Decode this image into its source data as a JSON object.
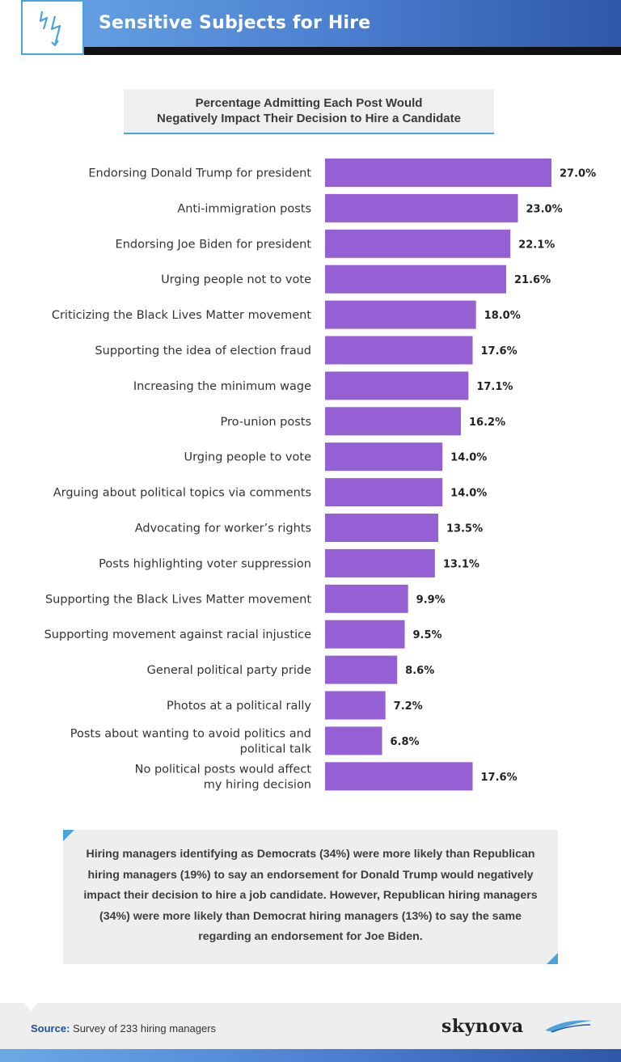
{
  "header": {
    "title": "Sensitive Subjects for Hire",
    "icon": "lightning-icon",
    "accent": "#4ba3dc"
  },
  "chart_data": {
    "type": "bar",
    "orientation": "horizontal",
    "title": "Percentage Admitting Each Post Would Negatively Impact Their Decision to Hire a Candidate",
    "title_lines": [
      "Percentage Admitting Each Post Would",
      "Negatively Impact Their Decision to Hire a Candidate"
    ],
    "bar_color": "#9560d4",
    "categories": [
      [
        "Endorsing Donald Trump for president"
      ],
      [
        "Anti-immigration posts"
      ],
      [
        "Endorsing Joe Biden for president"
      ],
      [
        "Urging people not to vote"
      ],
      [
        "Criticizing the Black Lives Matter movement"
      ],
      [
        "Supporting the idea of election fraud"
      ],
      [
        "Increasing the minimum wage"
      ],
      [
        "Pro-union posts"
      ],
      [
        "Urging people to vote"
      ],
      [
        "Arguing about political topics via comments"
      ],
      [
        "Advocating for worker’s rights"
      ],
      [
        "Posts highlighting voter suppression"
      ],
      [
        "Supporting the Black Lives Matter movement"
      ],
      [
        "Supporting movement against racial injustice"
      ],
      [
        "General political party pride"
      ],
      [
        "Photos at a political rally"
      ],
      [
        "Posts about wanting to avoid politics and",
        "political talk"
      ],
      [
        "No political posts would affect",
        "my hiring decision"
      ]
    ],
    "values": [
      27.0,
      23.0,
      22.1,
      21.6,
      18.0,
      17.6,
      17.1,
      16.2,
      14.0,
      14.0,
      13.5,
      13.1,
      9.9,
      9.5,
      8.6,
      7.2,
      6.8,
      17.6
    ],
    "value_labels": [
      "27.0%",
      "23.0%",
      "22.1%",
      "21.6%",
      "18.0%",
      "17.6%",
      "17.1%",
      "16.2%",
      "14.0%",
      "14.0%",
      "13.5%",
      "13.1%",
      "9.9%",
      "9.5%",
      "8.6%",
      "7.2%",
      "6.8%",
      "17.6%"
    ],
    "xlim": [
      0,
      27.0
    ],
    "xlabel": "",
    "ylabel": "",
    "grid": false
  },
  "note": {
    "text": "Hiring managers identifying as Democrats (34%) were more likely than Republican hiring managers (19%) to say an endorsement for Donald Trump would negatively impact their decision to hire a job candidate. However, Republican hiring managers (34%) were more likely than Democrat hiring managers (13%) to say the same regarding an endorsement for Joe Biden."
  },
  "footer": {
    "source_key": "Source:",
    "source_text": " Survey of 233 hiring managers",
    "brand": "skynova"
  }
}
